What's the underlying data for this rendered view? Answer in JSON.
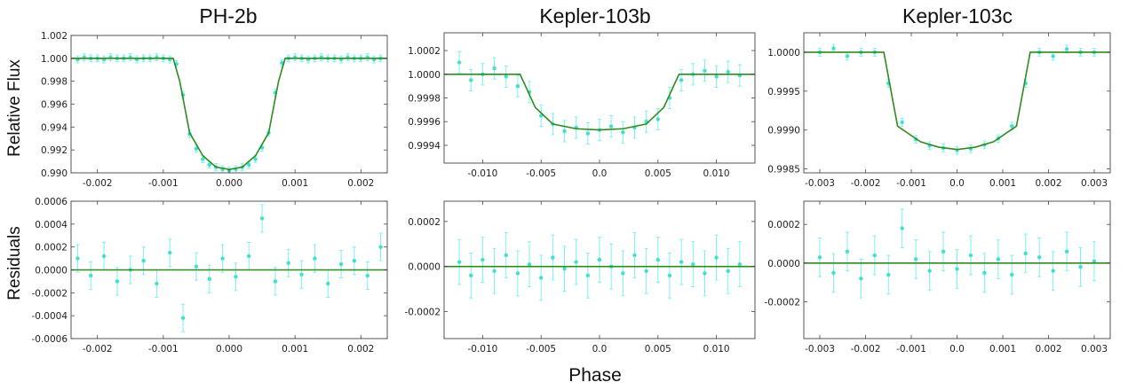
{
  "figure": {
    "titles": [
      "PH-2b",
      "Kepler-103b",
      "Kepler-103c"
    ],
    "ylabel_top": "Relative Flux",
    "ylabel_bottom": "Residuals",
    "xlabel": "Phase"
  },
  "colors": {
    "data": "#40e0d0",
    "errorbar": "#7ff0f0",
    "model": "#2e8b1f",
    "axis": "#444444"
  },
  "chart_data": [
    {
      "id": "ph2b-flux",
      "type": "scatter",
      "title": "PH-2b",
      "ylabel": "Relative Flux",
      "xlim": [
        -0.0024,
        0.0024
      ],
      "ylim": [
        0.99,
        1.002
      ],
      "xticks": [
        -0.002,
        -0.001,
        0.0,
        0.001,
        0.002
      ],
      "xtick_labels": [
        "-0.002",
        "-0.001",
        "0.000",
        "0.001",
        "0.002"
      ],
      "yticks": [
        0.99,
        0.992,
        0.994,
        0.996,
        0.998,
        1.0,
        1.002
      ],
      "ytick_labels": [
        "0.990",
        "0.992",
        "0.994",
        "0.996",
        "0.998",
        "1.000",
        "1.002"
      ],
      "model": {
        "x": [
          -0.0024,
          -0.00085,
          -0.00075,
          -0.0006,
          -0.0004,
          -0.0002,
          0.0,
          0.0002,
          0.0004,
          0.0006,
          0.00075,
          0.00085,
          0.0024
        ],
        "y": [
          1.0,
          1.0,
          0.998,
          0.9935,
          0.9915,
          0.9905,
          0.9903,
          0.9905,
          0.9915,
          0.9935,
          0.998,
          1.0,
          1.0
        ]
      },
      "series": [
        {
          "x": [
            -0.0023,
            -0.0022,
            -0.0021,
            -0.002,
            -0.0019,
            -0.0018,
            -0.0017,
            -0.0016,
            -0.0015,
            -0.0014,
            -0.0013,
            -0.0012,
            -0.0011,
            -0.001,
            -0.0009,
            -0.0008,
            -0.0007,
            -0.0006,
            -0.0005,
            -0.0004,
            -0.0003,
            -0.0002,
            -0.0001,
            0.0,
            0.0001,
            0.0002,
            0.0003,
            0.0004,
            0.0005,
            0.0006,
            0.0007,
            0.0008,
            0.0009,
            0.001,
            0.0011,
            0.0012,
            0.0013,
            0.0014,
            0.0015,
            0.0016,
            0.0017,
            0.0018,
            0.0019,
            0.002,
            0.0021,
            0.0022,
            0.0023
          ],
          "y": [
            0.9999,
            1.0001,
            1.0,
            1.0,
            0.9999,
            1.0001,
            1.0,
            1.0,
            1.0001,
            0.9999,
            1.0,
            1.0,
            1.0001,
            1.0,
            0.9999,
            0.9995,
            0.9968,
            0.9934,
            0.9921,
            0.9912,
            0.9907,
            0.9905,
            0.9903,
            0.9902,
            0.9903,
            0.9905,
            0.9907,
            0.9912,
            0.9922,
            0.9935,
            0.997,
            0.9996,
            1.0,
            1.0001,
            1.0,
            0.9999,
            1.0,
            1.0001,
            1.0,
            1.0,
            0.9999,
            1.0001,
            1.0,
            1.0,
            1.0001,
            0.9999,
            1.0
          ],
          "err": 0.0003
        }
      ]
    },
    {
      "id": "kep103b-flux",
      "type": "scatter",
      "title": "Kepler-103b",
      "ylabel": "",
      "xlim": [
        -0.0133,
        0.0133
      ],
      "ylim": [
        0.99925,
        1.00035
      ],
      "xticks": [
        -0.01,
        -0.005,
        0.0,
        0.005,
        0.01
      ],
      "xtick_labels": [
        "-0.010",
        "-0.005",
        "0.0",
        "0.005",
        "0.010"
      ],
      "yticks": [
        0.9994,
        0.9996,
        0.9998,
        1.0,
        1.0002
      ],
      "ytick_labels": [
        "0.9994",
        "0.9996",
        "0.9998",
        "1.0000",
        "1.0002"
      ],
      "model": {
        "x": [
          -0.0133,
          -0.0068,
          -0.0055,
          -0.004,
          -0.002,
          0.0,
          0.002,
          0.004,
          0.0055,
          0.0068,
          0.0133
        ],
        "y": [
          1.0,
          1.0,
          0.99972,
          0.99958,
          0.99954,
          0.99953,
          0.99954,
          0.99958,
          0.99972,
          1.0,
          1.0
        ]
      },
      "series": [
        {
          "x": [
            -0.012,
            -0.011,
            -0.01,
            -0.009,
            -0.008,
            -0.007,
            -0.006,
            -0.005,
            -0.004,
            -0.003,
            -0.002,
            -0.001,
            0.0,
            0.001,
            0.002,
            0.003,
            0.004,
            0.005,
            0.006,
            0.007,
            0.008,
            0.009,
            0.01,
            0.011,
            0.012
          ],
          "y": [
            1.0001,
            0.99995,
            1.0,
            1.00005,
            0.99998,
            0.9999,
            0.99985,
            0.99965,
            0.99958,
            0.99952,
            0.99955,
            0.9995,
            0.99953,
            0.99956,
            0.99951,
            0.99955,
            0.9996,
            0.99962,
            0.9998,
            0.99995,
            1.0,
            1.00003,
            0.99998,
            1.00002,
            0.99999
          ],
          "err": 9e-05
        }
      ]
    },
    {
      "id": "kep103c-flux",
      "type": "scatter",
      "title": "Kepler-103c",
      "ylabel": "",
      "xlim": [
        -0.00335,
        0.00335
      ],
      "ylim": [
        0.99845,
        1.00025
      ],
      "xticks": [
        -0.003,
        -0.002,
        -0.001,
        0.0,
        0.001,
        0.002,
        0.003
      ],
      "xtick_labels": [
        "-0.003",
        "-0.002",
        "-0.001",
        "0.0",
        "0.001",
        "0.002",
        "0.003"
      ],
      "yticks": [
        0.9985,
        0.999,
        0.9995,
        1.0
      ],
      "ytick_labels": [
        "0.9985",
        "0.9990",
        "0.9995",
        "1.0000"
      ],
      "model": {
        "x": [
          -0.00335,
          -0.0016,
          -0.0013,
          -0.0008,
          -0.0004,
          0.0,
          0.0004,
          0.0008,
          0.0013,
          0.0016,
          0.00335
        ],
        "y": [
          1.0,
          1.0,
          0.99905,
          0.99885,
          0.99878,
          0.99875,
          0.99878,
          0.99885,
          0.99905,
          1.0,
          1.0
        ]
      },
      "series": [
        {
          "x": [
            -0.003,
            -0.0027,
            -0.0024,
            -0.0021,
            -0.0018,
            -0.0015,
            -0.0012,
            -0.0009,
            -0.0006,
            -0.0003,
            0.0,
            0.0003,
            0.0006,
            0.0009,
            0.0012,
            0.0015,
            0.0018,
            0.0021,
            0.0024,
            0.0027,
            0.003
          ],
          "y": [
            1.0,
            1.00005,
            0.99995,
            1.0,
            1.0,
            0.9996,
            0.9991,
            0.99888,
            0.9988,
            0.99877,
            0.99874,
            0.99876,
            0.99881,
            0.99889,
            0.99905,
            0.9996,
            1.0,
            0.99995,
            1.00004,
            1.0,
            1.0
          ],
          "err": 5e-05
        }
      ]
    },
    {
      "id": "ph2b-resid",
      "type": "scatter",
      "title": "",
      "ylabel": "Residuals",
      "xlim": [
        -0.0024,
        0.0024
      ],
      "ylim": [
        -0.0006,
        0.0006
      ],
      "xticks": [
        -0.002,
        -0.001,
        0.0,
        0.001,
        0.002
      ],
      "xtick_labels": [
        "-0.002",
        "-0.001",
        "0.000",
        "0.001",
        "0.002"
      ],
      "yticks": [
        -0.0006,
        -0.0004,
        -0.0002,
        0.0,
        0.0002,
        0.0004,
        0.0006
      ],
      "ytick_labels": [
        "-0.0006",
        "-0.0004",
        "-0.0002",
        "0.0000",
        "0.0002",
        "0.0004",
        "0.0006"
      ],
      "model": {
        "x": [
          -0.0024,
          0.0024
        ],
        "y": [
          0.0,
          0.0
        ]
      },
      "series": [
        {
          "x": [
            -0.0023,
            -0.0021,
            -0.0019,
            -0.0017,
            -0.0015,
            -0.0013,
            -0.0011,
            -0.0009,
            -0.0007,
            -0.0005,
            -0.0003,
            -0.0001,
            0.0001,
            0.0003,
            0.0005,
            0.0007,
            0.0009,
            0.0011,
            0.0013,
            0.0015,
            0.0017,
            0.0019,
            0.0021,
            0.0023
          ],
          "y": [
            0.0001,
            -5e-05,
            0.00012,
            -0.0001,
            0.0,
            8e-05,
            -0.00012,
            0.00015,
            -0.00042,
            3e-05,
            -8e-05,
            0.0001,
            -6e-05,
            0.00012,
            0.00045,
            -0.0001,
            6e-05,
            -4e-05,
            0.0001,
            -0.00012,
            5e-05,
            8e-05,
            -5e-05,
            0.0002
          ],
          "err": 0.00012
        }
      ]
    },
    {
      "id": "kep103b-resid",
      "type": "scatter",
      "title": "",
      "ylabel": "",
      "xlim": [
        -0.0133,
        0.0133
      ],
      "ylim": [
        -0.00032,
        0.00029
      ],
      "xticks": [
        -0.01,
        -0.005,
        0.0,
        0.005,
        0.01
      ],
      "xtick_labels": [
        "-0.010",
        "-0.005",
        "0.0",
        "0.005",
        "0.010"
      ],
      "yticks": [
        -0.0002,
        0.0,
        0.0002
      ],
      "ytick_labels": [
        "-0.0002",
        "0.0000",
        "0.0002"
      ],
      "model": {
        "x": [
          -0.0133,
          0.0133
        ],
        "y": [
          0.0,
          0.0
        ]
      },
      "series": [
        {
          "x": [
            -0.012,
            -0.011,
            -0.01,
            -0.009,
            -0.008,
            -0.007,
            -0.006,
            -0.005,
            -0.004,
            -0.003,
            -0.002,
            -0.001,
            0.0,
            0.001,
            0.002,
            0.003,
            0.004,
            0.005,
            0.006,
            0.007,
            0.008,
            0.009,
            0.01,
            0.011,
            0.012
          ],
          "y": [
            2e-05,
            -4e-05,
            3e-05,
            -2e-05,
            5e-05,
            -3e-05,
            1e-05,
            -5e-05,
            4e-05,
            -1e-05,
            2e-05,
            -4e-05,
            3e-05,
            0.0,
            -3e-05,
            5e-05,
            -2e-05,
            3e-05,
            -4e-05,
            2e-05,
            1e-05,
            -3e-05,
            4e-05,
            -2e-05,
            1e-05
          ],
          "err": 0.0001
        }
      ]
    },
    {
      "id": "kep103c-resid",
      "type": "scatter",
      "title": "",
      "ylabel": "",
      "xlim": [
        -0.00335,
        0.00335
      ],
      "ylim": [
        -0.00039,
        0.00032
      ],
      "xticks": [
        -0.003,
        -0.002,
        -0.001,
        0.0,
        0.001,
        0.002,
        0.003
      ],
      "xtick_labels": [
        "-0.003",
        "-0.002",
        "-0.001",
        "0.0",
        "0.001",
        "0.002",
        "0.003"
      ],
      "yticks": [
        -0.0002,
        0.0,
        0.0002
      ],
      "ytick_labels": [
        "-0.0002",
        "0.0000",
        "0.0002"
      ],
      "model": {
        "x": [
          -0.00335,
          0.00335
        ],
        "y": [
          0.0,
          0.0
        ]
      },
      "series": [
        {
          "x": [
            -0.003,
            -0.0027,
            -0.0024,
            -0.0021,
            -0.0018,
            -0.0015,
            -0.0012,
            -0.0009,
            -0.0006,
            -0.0003,
            0.0,
            0.0003,
            0.0006,
            0.0009,
            0.0012,
            0.0015,
            0.0018,
            0.0021,
            0.0024,
            0.0027,
            0.003
          ],
          "y": [
            3e-05,
            -5e-05,
            6e-05,
            -8e-05,
            4e-05,
            -6e-05,
            0.00018,
            2e-05,
            -4e-05,
            6e-05,
            -3e-05,
            4e-05,
            -5e-05,
            2e-05,
            -6e-05,
            5e-05,
            3e-05,
            -4e-05,
            6e-05,
            -2e-05,
            1e-05
          ],
          "err": 0.0001
        }
      ]
    }
  ]
}
